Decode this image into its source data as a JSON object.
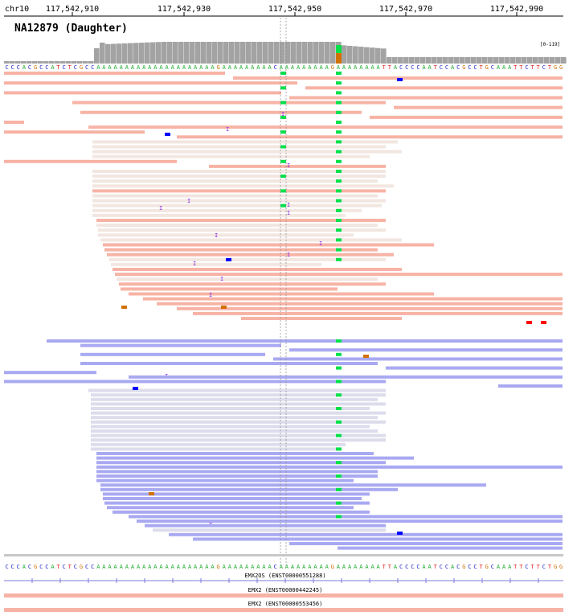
{
  "header": {
    "chromosome": "chr10",
    "ticks": [
      "117,542,910",
      "117,542,930",
      "117,542,950",
      "117,542,970",
      "117,542,990"
    ]
  },
  "track": {
    "sample_title": "NA12879 (Daughter)",
    "coverage_range": "[0-119]"
  },
  "reference": {
    "sequence": "CCCACGCCATCTCGCCAAAAAAAAAAAAAAAAAAAAAGAAAAAAAAACAAAAAAAAAGAAAAAAAATTACCCCAATCCACGCCTGCAAATTCTTCTGG"
  },
  "colors": {
    "forward_read": "#f7b3a5",
    "forward_read_low_mapq": "#f2e6e0",
    "reverse_read": "#a9a9f2",
    "reverse_read_low_mapq": "#dcdcec",
    "coverage": "#a3a3a3",
    "mismatch_A": "#00e04a",
    "mismatch_C": "#0000ff",
    "mismatch_G": "#d17105",
    "mismatch_T": "#ff0000",
    "insertion": "#8a2be2",
    "gene": "#7b7bdc",
    "transcript": "#f7b3a5"
  },
  "annotations": {
    "transcripts": [
      "EMX2OS (ENST00000551288)",
      "EMX2 (ENST00000442245)",
      "EMX2 (ENST00000553456)"
    ]
  }
}
